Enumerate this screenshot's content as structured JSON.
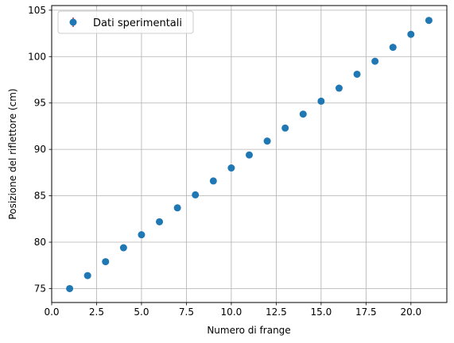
{
  "chart_data": {
    "type": "scatter",
    "title": "",
    "xlabel": "Numero di frange",
    "ylabel": "Posizione del riflettore (cm)",
    "xlim": [
      0,
      22
    ],
    "ylim": [
      73.5,
      105.5
    ],
    "xticks": [
      0.0,
      2.5,
      5.0,
      7.5,
      10.0,
      12.5,
      15.0,
      17.5,
      20.0
    ],
    "xtick_labels": [
      "0.0",
      "2.5",
      "5.0",
      "7.5",
      "10.0",
      "12.5",
      "15.0",
      "17.5",
      "20.0"
    ],
    "yticks": [
      75,
      80,
      85,
      90,
      95,
      100,
      105
    ],
    "ytick_labels": [
      "75",
      "80",
      "85",
      "90",
      "95",
      "100",
      "105"
    ],
    "grid": true,
    "legend_position": "top-left",
    "color": "#1f77b4",
    "errorbar_color": "#d62728",
    "series": [
      {
        "name": "Dati sperimentali",
        "x": [
          1,
          2,
          3,
          4,
          5,
          6,
          7,
          8,
          9,
          10,
          11,
          12,
          13,
          14,
          15,
          16,
          17,
          18,
          19,
          20,
          21
        ],
        "y": [
          75.0,
          76.4,
          77.9,
          79.4,
          80.8,
          82.2,
          83.7,
          85.1,
          86.6,
          88.0,
          89.4,
          90.9,
          92.3,
          93.8,
          95.2,
          96.6,
          98.1,
          99.5,
          101.0,
          102.4,
          103.9
        ]
      }
    ]
  }
}
